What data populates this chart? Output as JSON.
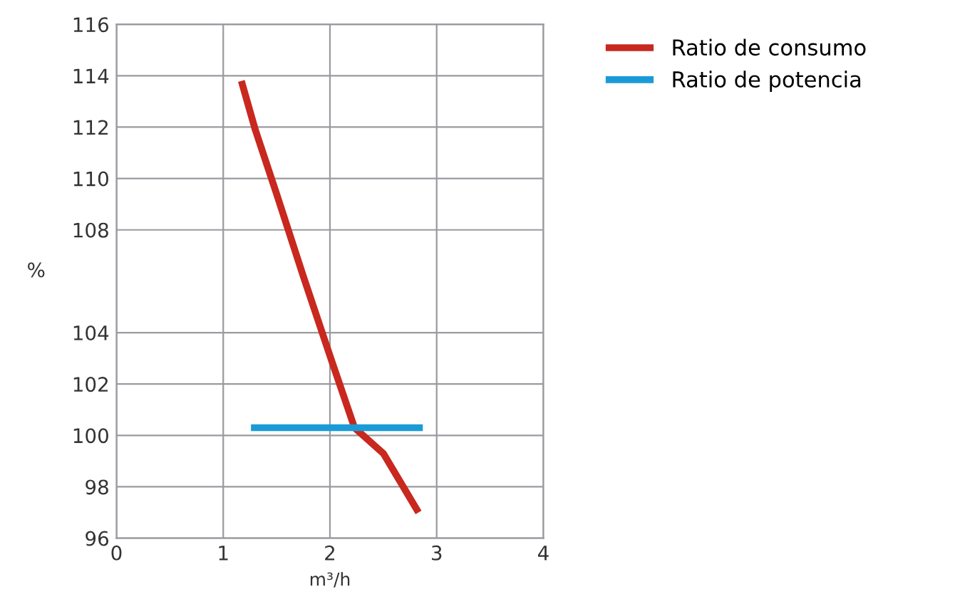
{
  "chart_data": {
    "type": "line",
    "xlabel": "m³/h",
    "ylabel": "%",
    "xlim": [
      0,
      4
    ],
    "xticks": [
      0,
      1,
      2,
      3,
      4
    ],
    "ylim": [
      96,
      116
    ],
    "yticks": [
      96,
      98,
      100,
      102,
      104,
      108,
      110,
      112,
      114,
      116
    ],
    "grid": true,
    "legend": "top right",
    "marker": "none",
    "line_style": "solid",
    "series": [
      {
        "name": "Ratio de consumo",
        "color": "#c8281e",
        "x": [
          1.17,
          1.3,
          1.5,
          1.75,
          2.0,
          2.23,
          2.5,
          2.83
        ],
        "values": [
          113.8,
          111.9,
          109.4,
          106.2,
          103.1,
          100.3,
          99.3,
          97.0
        ]
      },
      {
        "name": "Ratio de potencia",
        "color": "#1a9bd7",
        "x": [
          1.26,
          2.87
        ],
        "values": [
          100.3,
          100.3
        ]
      }
    ]
  }
}
